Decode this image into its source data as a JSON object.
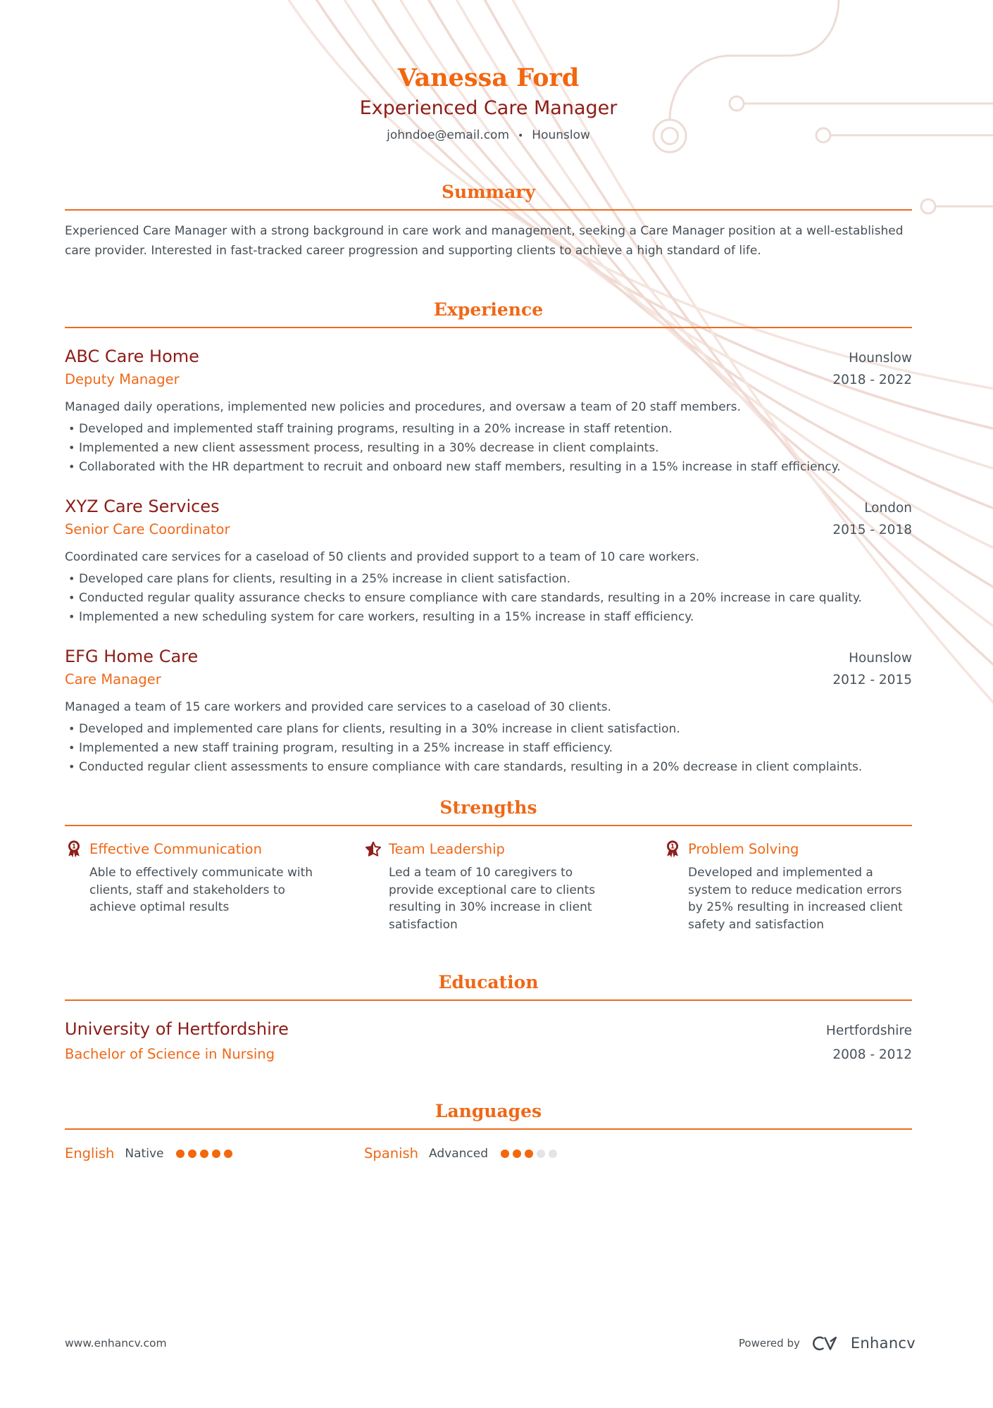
{
  "header": {
    "name": "Vanessa Ford",
    "title": "Experienced Care Manager",
    "contact": {
      "email": "johndoe@email.com",
      "separator": "•",
      "location": "Hounslow"
    }
  },
  "summary": {
    "heading": "Summary",
    "text": "Experienced Care Manager with a strong background in care work and management, seeking a Care Manager position at a well-established care provider. Interested in fast-tracked career progression and supporting clients to achieve a high standard of life."
  },
  "experience": {
    "heading": "Experience",
    "jobs": [
      {
        "company": "ABC Care Home",
        "location": "Hounslow",
        "role": "Deputy Manager",
        "dates": "2018 - 2022",
        "description": "Managed daily operations, implemented new policies and procedures, and oversaw a team of 20 staff members.",
        "bullets": [
          "Developed and implemented staff training programs, resulting in a 20% increase in staff retention.",
          "Implemented a new client assessment process, resulting in a 30% decrease in client complaints.",
          "Collaborated with the HR department to recruit and onboard new staff members, resulting in a 15% increase in staff efficiency."
        ]
      },
      {
        "company": "XYZ Care Services",
        "location": "London",
        "role": "Senior Care Coordinator",
        "dates": "2015 - 2018",
        "description": "Coordinated care services for a caseload of 50 clients and provided support to a team of 10 care workers.",
        "bullets": [
          "Developed care plans for clients, resulting in a 25% increase in client satisfaction.",
          "Conducted regular quality assurance checks to ensure compliance with care standards, resulting in a 20% increase in care quality.",
          "Implemented a new scheduling system for care workers, resulting in a 15% increase in staff efficiency."
        ]
      },
      {
        "company": "EFG Home Care",
        "location": "Hounslow",
        "role": "Care Manager",
        "dates": "2012 - 2015",
        "description": "Managed a team of 15 care workers and provided care services to a caseload of 30 clients.",
        "bullets": [
          "Developed and implemented care plans for clients, resulting in a 30% increase in client satisfaction.",
          "Implemented a new staff training program, resulting in a 25% increase in staff efficiency.",
          "Conducted regular client assessments to ensure compliance with care standards, resulting in a 20% decrease in client complaints."
        ]
      }
    ]
  },
  "strengths": {
    "heading": "Strengths",
    "items": [
      {
        "icon": "medal-icon",
        "title": "Effective Communication",
        "description": "Able to effectively communicate with clients, staff and stakeholders to achieve optimal results"
      },
      {
        "icon": "star-icon",
        "title": "Team Leadership",
        "description": "Led a team of 10 caregivers to provide exceptional care to clients resulting in 30% increase in client satisfaction"
      },
      {
        "icon": "medal-icon",
        "title": "Problem Solving",
        "description": "Developed and implemented a system to reduce medication errors by 25% resulting in increased client safety and satisfaction"
      }
    ]
  },
  "education": {
    "heading": "Education",
    "school": "University of Hertfordshire",
    "location": "Hertfordshire",
    "degree": "Bachelor of Science in Nursing",
    "dates": "2008 - 2012"
  },
  "languages": {
    "heading": "Languages",
    "items": [
      {
        "name": "English",
        "level": "Native",
        "dots_filled": 5,
        "dots_total": 5
      },
      {
        "name": "Spanish",
        "level": "Advanced",
        "dots_filled": 3,
        "dots_total": 5
      }
    ]
  },
  "footer": {
    "website": "www.enhancv.com",
    "powered_by": "Powered by",
    "brand": "Enhancv"
  },
  "colors": {
    "accent_orange": "#EF6817",
    "dark_red": "#8C1D18",
    "body_text": "#474F55",
    "decor_pink": "#F2DFD8",
    "dot_empty": "#E4E4E4"
  }
}
